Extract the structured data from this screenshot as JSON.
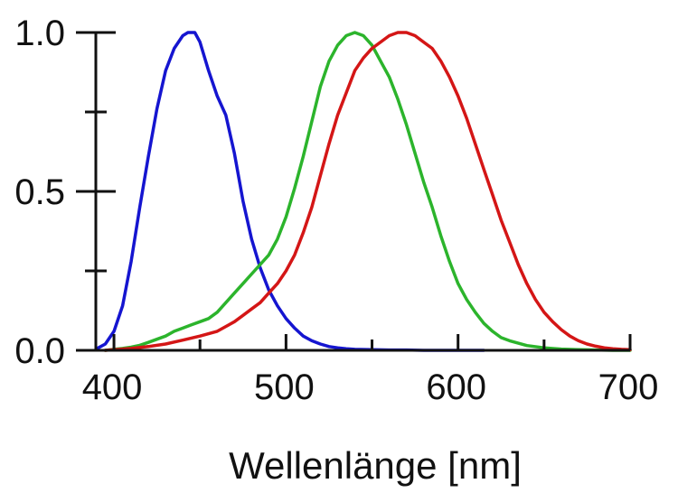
{
  "chart_data": {
    "type": "line",
    "title": "",
    "xlabel": "Wellenlänge  [nm]",
    "ylabel": "",
    "xlim": [
      380,
      700
    ],
    "ylim": [
      0.0,
      1.0
    ],
    "grid": false,
    "legend": "none",
    "x_ticks": [
      {
        "value": 400,
        "label": "400"
      },
      {
        "value": 500,
        "label": "500"
      },
      {
        "value": 600,
        "label": "600"
      },
      {
        "value": 700,
        "label": "700"
      }
    ],
    "x_minor_ticks": [
      450,
      550,
      650
    ],
    "y_ticks": [
      {
        "value": 0.0,
        "label": "0.0"
      },
      {
        "value": 0.5,
        "label": "0.5"
      },
      {
        "value": 1.0,
        "label": "1.0"
      }
    ],
    "y_minor_ticks": [
      0.25,
      0.75
    ],
    "series": [
      {
        "color": "#1515d0",
        "x": [
          390,
          395,
          400,
          405,
          410,
          415,
          420,
          425,
          430,
          435,
          440,
          443,
          447,
          450,
          455,
          460,
          465,
          470,
          475,
          480,
          485,
          490,
          495,
          500,
          505,
          510,
          515,
          520,
          525,
          530,
          535,
          540,
          550,
          560,
          570,
          580,
          600,
          615
        ],
        "y": [
          0.005,
          0.02,
          0.06,
          0.14,
          0.28,
          0.45,
          0.61,
          0.76,
          0.88,
          0.95,
          0.99,
          1.0,
          1.0,
          0.97,
          0.88,
          0.8,
          0.74,
          0.62,
          0.47,
          0.35,
          0.26,
          0.19,
          0.14,
          0.1,
          0.07,
          0.045,
          0.03,
          0.02,
          0.012,
          0.008,
          0.005,
          0.003,
          0.002,
          0.001,
          0.001,
          0.0,
          0.0,
          0.0
        ]
      },
      {
        "color": "#2cb42c",
        "x": [
          395,
          400,
          405,
          410,
          415,
          420,
          425,
          430,
          435,
          440,
          445,
          450,
          455,
          460,
          465,
          470,
          475,
          480,
          485,
          490,
          495,
          500,
          505,
          510,
          515,
          520,
          525,
          530,
          535,
          540,
          545,
          550,
          555,
          560,
          565,
          570,
          575,
          580,
          585,
          590,
          595,
          600,
          605,
          610,
          615,
          620,
          625,
          630,
          640,
          650,
          660,
          670,
          680,
          690,
          700
        ],
        "y": [
          0.0,
          0.003,
          0.006,
          0.01,
          0.016,
          0.025,
          0.035,
          0.045,
          0.06,
          0.07,
          0.08,
          0.09,
          0.1,
          0.12,
          0.15,
          0.18,
          0.21,
          0.24,
          0.27,
          0.3,
          0.35,
          0.42,
          0.51,
          0.61,
          0.72,
          0.83,
          0.91,
          0.96,
          0.99,
          1.0,
          0.99,
          0.96,
          0.91,
          0.86,
          0.79,
          0.71,
          0.62,
          0.53,
          0.45,
          0.36,
          0.28,
          0.21,
          0.16,
          0.12,
          0.085,
          0.06,
          0.04,
          0.03,
          0.015,
          0.008,
          0.004,
          0.002,
          0.001,
          0.0,
          0.0
        ]
      },
      {
        "color": "#d41616",
        "x": [
          395,
          400,
          410,
          420,
          430,
          440,
          450,
          460,
          465,
          470,
          475,
          480,
          485,
          490,
          495,
          500,
          505,
          510,
          515,
          520,
          525,
          530,
          535,
          540,
          545,
          550,
          555,
          560,
          565,
          570,
          575,
          580,
          585,
          590,
          595,
          600,
          605,
          610,
          615,
          620,
          625,
          630,
          635,
          640,
          645,
          650,
          655,
          660,
          665,
          670,
          675,
          680,
          685,
          690,
          695,
          700
        ],
        "y": [
          0.0,
          0.002,
          0.006,
          0.012,
          0.02,
          0.032,
          0.045,
          0.06,
          0.075,
          0.09,
          0.11,
          0.13,
          0.15,
          0.18,
          0.21,
          0.25,
          0.3,
          0.37,
          0.45,
          0.55,
          0.65,
          0.74,
          0.81,
          0.88,
          0.92,
          0.95,
          0.97,
          0.99,
          1.0,
          1.0,
          0.99,
          0.97,
          0.95,
          0.91,
          0.86,
          0.8,
          0.73,
          0.65,
          0.57,
          0.49,
          0.41,
          0.34,
          0.27,
          0.21,
          0.16,
          0.12,
          0.09,
          0.065,
          0.045,
          0.03,
          0.02,
          0.013,
          0.008,
          0.005,
          0.003,
          0.002
        ]
      }
    ]
  }
}
